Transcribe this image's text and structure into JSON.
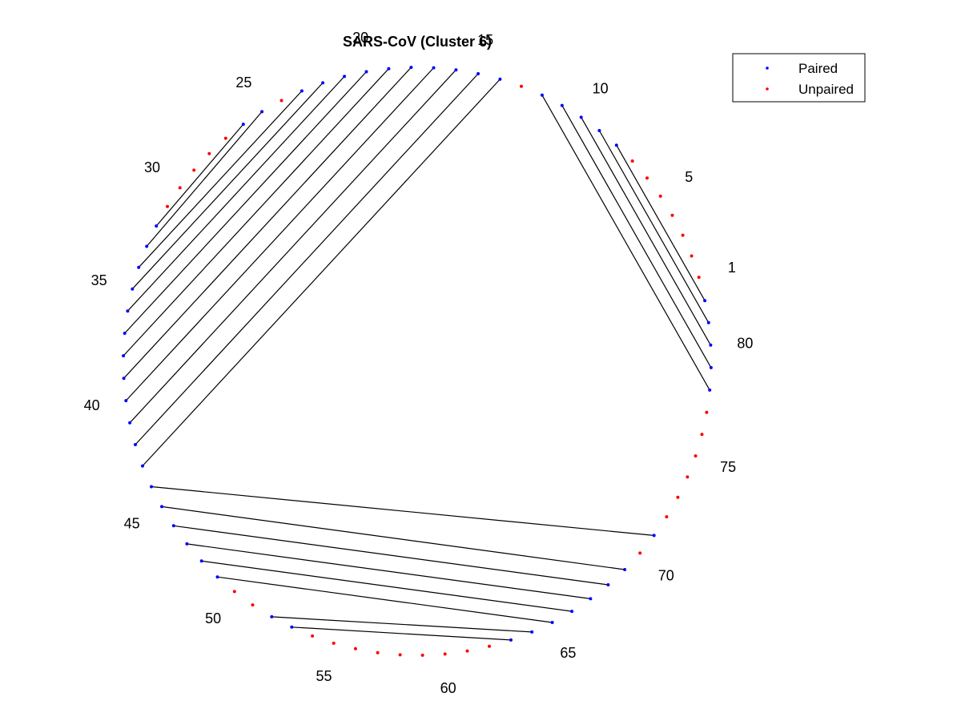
{
  "chart_data": {
    "type": "arc-diagram",
    "title": "SARS-CoV (Cluster 6)",
    "legend": {
      "placement": "top-right",
      "entries": [
        {
          "label": "Paired",
          "color": "#0000ff"
        },
        {
          "label": "Unpaired",
          "color": "#ff0000"
        }
      ]
    },
    "sequence_length": 82,
    "tick_labels": [
      "1",
      "5",
      "10",
      "15",
      "20",
      "25",
      "30",
      "35",
      "40",
      "45",
      "50",
      "55",
      "60",
      "65",
      "70",
      "75",
      "80"
    ],
    "tick_positions": [
      1,
      5,
      10,
      15,
      20,
      25,
      30,
      35,
      40,
      45,
      50,
      55,
      60,
      65,
      70,
      75,
      80
    ],
    "pairs": [
      [
        82,
        8
      ],
      [
        81,
        9
      ],
      [
        80,
        10
      ],
      [
        79,
        11
      ],
      [
        78,
        12
      ],
      [
        14,
        43
      ],
      [
        15,
        42
      ],
      [
        16,
        41
      ],
      [
        17,
        40
      ],
      [
        18,
        39
      ],
      [
        19,
        38
      ],
      [
        20,
        37
      ],
      [
        21,
        36
      ],
      [
        22,
        35
      ],
      [
        23,
        34
      ],
      [
        25,
        33
      ],
      [
        26,
        32
      ],
      [
        44,
        71
      ],
      [
        45,
        69
      ],
      [
        46,
        68
      ],
      [
        47,
        67
      ],
      [
        48,
        66
      ],
      [
        49,
        65
      ],
      [
        52,
        64
      ],
      [
        53,
        63
      ]
    ],
    "colors": {
      "paired": "#0000ff",
      "unpaired": "#ff0000",
      "pair_line": "#000000"
    }
  }
}
